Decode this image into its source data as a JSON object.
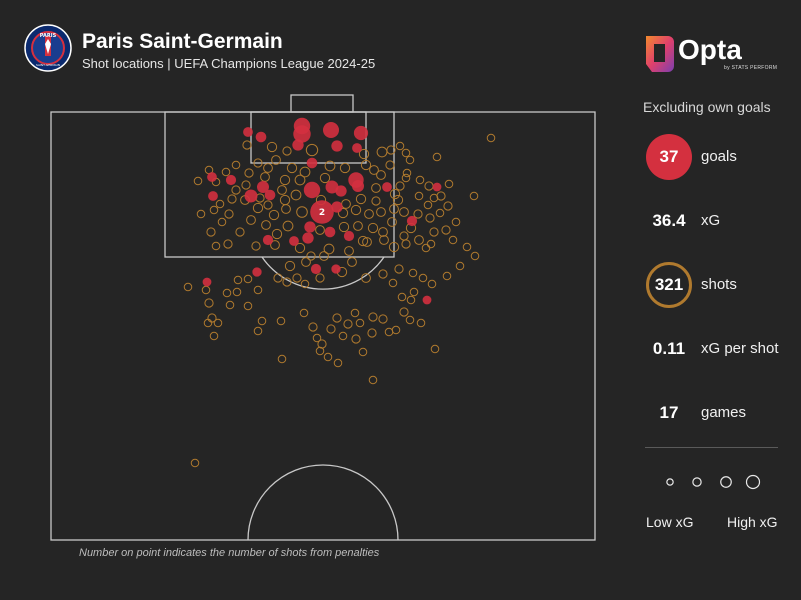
{
  "header": {
    "team_name": "Paris Saint-Germain",
    "subtitle": "Shot locations | UEFA Champions League 2024-25",
    "crest_text": "PARIS",
    "crest_bottom_text": "SAINT-GERMAIN"
  },
  "brand": {
    "name": "Opta",
    "tagline": "by STATS PERFORM"
  },
  "panel": {
    "exclusion_note": "Excluding own goals",
    "stats": [
      {
        "value": "37",
        "label": "goals"
      },
      {
        "value": "36.4",
        "label": "xG"
      },
      {
        "value": "321",
        "label": "shots"
      },
      {
        "value": "0.11",
        "label": "xG per shot"
      },
      {
        "value": "17",
        "label": "games"
      }
    ],
    "legend_low": "Low xG",
    "legend_high": "High xG"
  },
  "footnote": "Number on point indicates the number of shots from penalties",
  "colors": {
    "background": "#252525",
    "goal": "#d4303f",
    "shot": "#b07a2e",
    "pitch_lines": "#c8c8c8"
  },
  "chart_data": {
    "type": "scatter",
    "title": "Shot locations | UEFA Champions League 2024-25",
    "x_label": "",
    "y_label": "",
    "penalty_label": "2",
    "series": [
      {
        "name": "goals",
        "points": [
          [
            248,
            132,
            0.06
          ],
          [
            261,
            137,
            0.08
          ],
          [
            302,
            126,
            0.3
          ],
          [
            302,
            134,
            0.35
          ],
          [
            331,
            130,
            0.28
          ],
          [
            361,
            133,
            0.2
          ],
          [
            298,
            145,
            0.1
          ],
          [
            337,
            146,
            0.1
          ],
          [
            357,
            148,
            0.06
          ],
          [
            312,
            163,
            0.08
          ],
          [
            212,
            177,
            0.06
          ],
          [
            231,
            180,
            0.07
          ],
          [
            263,
            187,
            0.12
          ],
          [
            312,
            190,
            0.3
          ],
          [
            332,
            187,
            0.15
          ],
          [
            356,
            180,
            0.25
          ],
          [
            341,
            191,
            0.1
          ],
          [
            358,
            186,
            0.12
          ],
          [
            387,
            187,
            0.06
          ],
          [
            251,
            196,
            0.15
          ],
          [
            270,
            195,
            0.08
          ],
          [
            213,
            196,
            0.06
          ],
          [
            337,
            207,
            0.1
          ],
          [
            322,
            212,
            0.76
          ],
          [
            310,
            227,
            0.1
          ],
          [
            330,
            232,
            0.08
          ],
          [
            412,
            221,
            0.07
          ],
          [
            268,
            240,
            0.07
          ],
          [
            308,
            238,
            0.1
          ],
          [
            349,
            236,
            0.07
          ],
          [
            294,
            241,
            0.06
          ],
          [
            316,
            269,
            0.07
          ],
          [
            257,
            272,
            0.05
          ],
          [
            336,
            269,
            0.05
          ],
          [
            207,
            282,
            0.04
          ],
          [
            427,
            300,
            0.04
          ],
          [
            437,
            187,
            0.04
          ]
        ]
      },
      {
        "name": "shots",
        "points": [
          [
            247,
            145,
            0.03
          ],
          [
            272,
            147,
            0.05
          ],
          [
            287,
            151,
            0.03
          ],
          [
            312,
            150,
            0.1
          ],
          [
            364,
            154,
            0.05
          ],
          [
            382,
            152,
            0.06
          ],
          [
            391,
            150,
            0.03
          ],
          [
            400,
            146,
            0.02
          ],
          [
            406,
            153,
            0.02
          ],
          [
            410,
            160,
            0.02
          ],
          [
            437,
            157,
            0.02
          ],
          [
            491,
            138,
            0.02
          ],
          [
            258,
            163,
            0.03
          ],
          [
            276,
            160,
            0.04
          ],
          [
            292,
            168,
            0.05
          ],
          [
            305,
            172,
            0.06
          ],
          [
            330,
            166,
            0.06
          ],
          [
            345,
            168,
            0.05
          ],
          [
            366,
            165,
            0.05
          ],
          [
            374,
            170,
            0.04
          ],
          [
            381,
            175,
            0.04
          ],
          [
            390,
            165,
            0.03
          ],
          [
            236,
            165,
            0.02
          ],
          [
            226,
            172,
            0.02
          ],
          [
            209,
            170,
            0.02
          ],
          [
            198,
            181,
            0.02
          ],
          [
            236,
            190,
            0.03
          ],
          [
            245,
            200,
            0.04
          ],
          [
            258,
            208,
            0.05
          ],
          [
            274,
            215,
            0.05
          ],
          [
            285,
            180,
            0.05
          ],
          [
            296,
            195,
            0.06
          ],
          [
            302,
            212,
            0.08
          ],
          [
            288,
            226,
            0.06
          ],
          [
            277,
            234,
            0.05
          ],
          [
            300,
            248,
            0.05
          ],
          [
            266,
            225,
            0.04
          ],
          [
            251,
            220,
            0.04
          ],
          [
            229,
            214,
            0.03
          ],
          [
            214,
            210,
            0.02
          ],
          [
            201,
            214,
            0.02
          ],
          [
            211,
            232,
            0.03
          ],
          [
            228,
            244,
            0.03
          ],
          [
            240,
            232,
            0.03
          ],
          [
            356,
            210,
            0.05
          ],
          [
            369,
            214,
            0.04
          ],
          [
            381,
            212,
            0.04
          ],
          [
            398,
            200,
            0.05
          ],
          [
            404,
            212,
            0.04
          ],
          [
            411,
            228,
            0.05
          ],
          [
            419,
            240,
            0.04
          ],
          [
            430,
            218,
            0.03
          ],
          [
            434,
            232,
            0.03
          ],
          [
            446,
            230,
            0.03
          ],
          [
            453,
            240,
            0.02
          ],
          [
            456,
            222,
            0.02
          ],
          [
            448,
            206,
            0.03
          ],
          [
            441,
            196,
            0.03
          ],
          [
            429,
            186,
            0.03
          ],
          [
            420,
            180,
            0.02
          ],
          [
            406,
            178,
            0.02
          ],
          [
            395,
            194,
            0.05
          ],
          [
            373,
            228,
            0.05
          ],
          [
            384,
            240,
            0.04
          ],
          [
            394,
            247,
            0.05
          ],
          [
            406,
            244,
            0.03
          ],
          [
            376,
            201,
            0.03
          ],
          [
            343,
            213,
            0.05
          ],
          [
            329,
            249,
            0.06
          ],
          [
            349,
            251,
            0.04
          ],
          [
            363,
            241,
            0.05
          ],
          [
            342,
            272,
            0.05
          ],
          [
            352,
            262,
            0.04
          ],
          [
            324,
            256,
            0.04
          ],
          [
            306,
            262,
            0.04
          ],
          [
            290,
            266,
            0.05
          ],
          [
            278,
            278,
            0.03
          ],
          [
            287,
            282,
            0.03
          ],
          [
            297,
            278,
            0.03
          ],
          [
            305,
            284,
            0.02
          ],
          [
            320,
            278,
            0.03
          ],
          [
            366,
            278,
            0.04
          ],
          [
            383,
            274,
            0.03
          ],
          [
            399,
            269,
            0.03
          ],
          [
            413,
            273,
            0.02
          ],
          [
            423,
            278,
            0.02
          ],
          [
            432,
            284,
            0.02
          ],
          [
            447,
            276,
            0.02
          ],
          [
            460,
            266,
            0.02
          ],
          [
            474,
            196,
            0.02
          ],
          [
            475,
            256,
            0.02
          ],
          [
            467,
            247,
            0.02
          ],
          [
            188,
            287,
            0.02
          ],
          [
            206,
            290,
            0.02
          ],
          [
            227,
            293,
            0.02
          ],
          [
            237,
            292,
            0.02
          ],
          [
            238,
            280,
            0.02
          ],
          [
            248,
            279,
            0.02
          ],
          [
            258,
            290,
            0.02
          ],
          [
            209,
            303,
            0.03
          ],
          [
            212,
            318,
            0.03
          ],
          [
            218,
            323,
            0.02
          ],
          [
            214,
            336,
            0.02
          ],
          [
            208,
            323,
            0.02
          ],
          [
            248,
            306,
            0.02
          ],
          [
            262,
            321,
            0.02
          ],
          [
            258,
            331,
            0.02
          ],
          [
            281,
            321,
            0.02
          ],
          [
            304,
            313,
            0.02
          ],
          [
            313,
            327,
            0.03
          ],
          [
            331,
            329,
            0.03
          ],
          [
            337,
            318,
            0.03
          ],
          [
            348,
            324,
            0.03
          ],
          [
            355,
            313,
            0.02
          ],
          [
            360,
            323,
            0.02
          ],
          [
            373,
            317,
            0.03
          ],
          [
            383,
            319,
            0.03
          ],
          [
            389,
            332,
            0.02
          ],
          [
            396,
            330,
            0.02
          ],
          [
            404,
            312,
            0.03
          ],
          [
            411,
            300,
            0.02
          ],
          [
            410,
            320,
            0.02
          ],
          [
            421,
            323,
            0.02
          ],
          [
            402,
            297,
            0.02
          ],
          [
            414,
            292,
            0.02
          ],
          [
            322,
            344,
            0.03
          ],
          [
            317,
            338,
            0.02
          ],
          [
            343,
            336,
            0.02
          ],
          [
            356,
            339,
            0.03
          ],
          [
            372,
            333,
            0.03
          ],
          [
            363,
            352,
            0.02
          ],
          [
            320,
            351,
            0.02
          ],
          [
            328,
            357,
            0.02
          ],
          [
            282,
            359,
            0.02
          ],
          [
            338,
            363,
            0.02
          ],
          [
            373,
            380,
            0.02
          ],
          [
            435,
            349,
            0.02
          ],
          [
            195,
            463,
            0.02
          ],
          [
            434,
            198,
            0.02
          ],
          [
            407,
            173,
            0.02
          ],
          [
            232,
            199,
            0.03
          ],
          [
            220,
            204,
            0.02
          ],
          [
            268,
            205,
            0.03
          ],
          [
            286,
            209,
            0.04
          ],
          [
            320,
            230,
            0.04
          ],
          [
            358,
            226,
            0.04
          ],
          [
            392,
            222,
            0.04
          ],
          [
            383,
            232,
            0.04
          ],
          [
            256,
            246,
            0.03
          ],
          [
            275,
            245,
            0.04
          ],
          [
            346,
            204,
            0.04
          ],
          [
            321,
            200,
            0.05
          ],
          [
            404,
            236,
            0.03
          ],
          [
            418,
            214,
            0.03
          ],
          [
            431,
            244,
            0.02
          ],
          [
            222,
            222,
            0.02
          ],
          [
            216,
            182,
            0.02
          ],
          [
            265,
            177,
            0.04
          ],
          [
            249,
            173,
            0.03
          ],
          [
            300,
            180,
            0.06
          ],
          [
            376,
            188,
            0.04
          ],
          [
            361,
            199,
            0.05
          ],
          [
            246,
            185,
            0.03
          ],
          [
            428,
            205,
            0.02
          ],
          [
            440,
            213,
            0.02
          ],
          [
            426,
            248,
            0.02
          ],
          [
            285,
            200,
            0.05
          ],
          [
            311,
            256,
            0.03
          ],
          [
            393,
            283,
            0.02
          ],
          [
            230,
            305,
            0.02
          ],
          [
            282,
            190,
            0.04
          ],
          [
            325,
            178,
            0.05
          ],
          [
            268,
            168,
            0.04
          ],
          [
            419,
            196,
            0.02
          ],
          [
            367,
            242,
            0.04
          ],
          [
            344,
            227,
            0.05
          ],
          [
            260,
            198,
            0.03
          ],
          [
            400,
            186,
            0.03
          ],
          [
            216,
            246,
            0.02
          ],
          [
            449,
            184,
            0.02
          ],
          [
            394,
            209,
            0.04
          ]
        ]
      }
    ],
    "legend_xg_values": [
      0.02,
      0.08,
      0.2,
      0.4
    ]
  }
}
